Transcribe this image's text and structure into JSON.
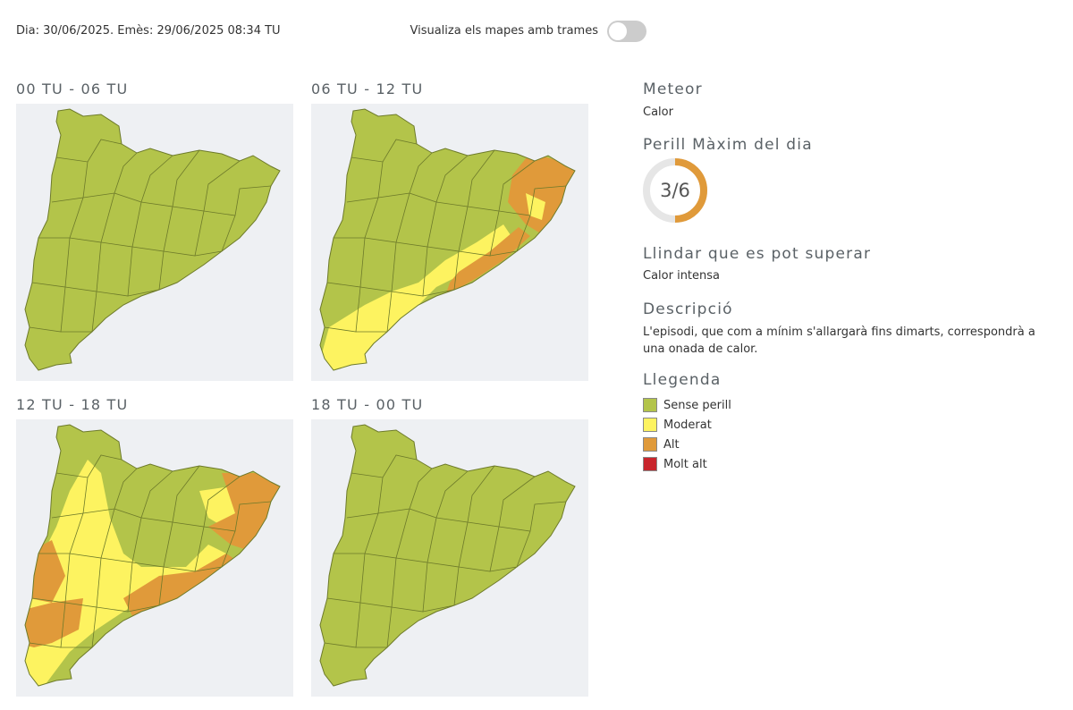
{
  "header": {
    "issue": "Dia: 30/06/2025. Emès: 29/06/2025 08:34 TU",
    "toggle_label": "Visualiza els mapes amb trames"
  },
  "maps": [
    {
      "title": "00 TU - 06 TU"
    },
    {
      "title": "06 TU - 12 TU"
    },
    {
      "title": "12 TU - 18 TU"
    },
    {
      "title": "18 TU - 00 TU"
    }
  ],
  "info": {
    "meteor_title": "Meteor",
    "meteor": "Calor",
    "danger_title": "Perill Màxim del dia",
    "gauge": {
      "value": 3,
      "max": 6,
      "label": "3/6",
      "color": "#e09a3a"
    },
    "threshold_title": "Llindar que es pot superar",
    "threshold": "Calor intensa",
    "description_title": "Descripció",
    "description": "L'episodi, que com a mínim s'allargarà fins dimarts, correspondrà a una onada de calor.",
    "legend_title": "Llegenda",
    "legend": [
      {
        "label": "Sense perill",
        "color": "#b3c44a"
      },
      {
        "label": "Moderat",
        "color": "#fdf360"
      },
      {
        "label": "Alt",
        "color": "#e09a3a"
      },
      {
        "label": "Molt alt",
        "color": "#c8252c"
      }
    ]
  }
}
